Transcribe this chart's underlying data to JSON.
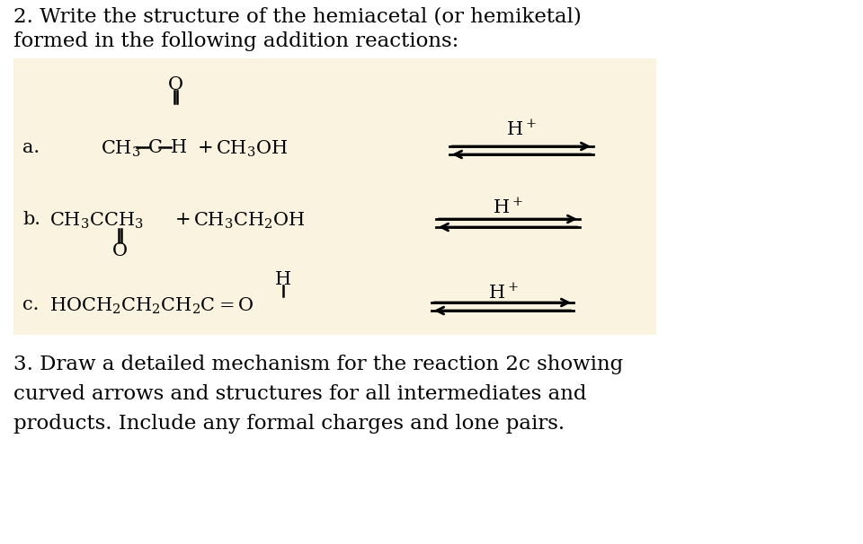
{
  "bg_color": "#ffffff",
  "box_color": "#faf3e0",
  "title2_line1": "2. Write the structure of the hemiacetal (or hemiketal)",
  "title2_line2": "formed in the following addition reactions:",
  "title3_line1": "3. Draw a detailed mechanism for the reaction 2c showing",
  "title3_line2": "curved arrows and structures for all intermediates and",
  "title3_line3": "products. Include any formal charges and lone pairs.",
  "font_size_title": 16.5,
  "font_size_chem": 15,
  "font_size_label": 14
}
